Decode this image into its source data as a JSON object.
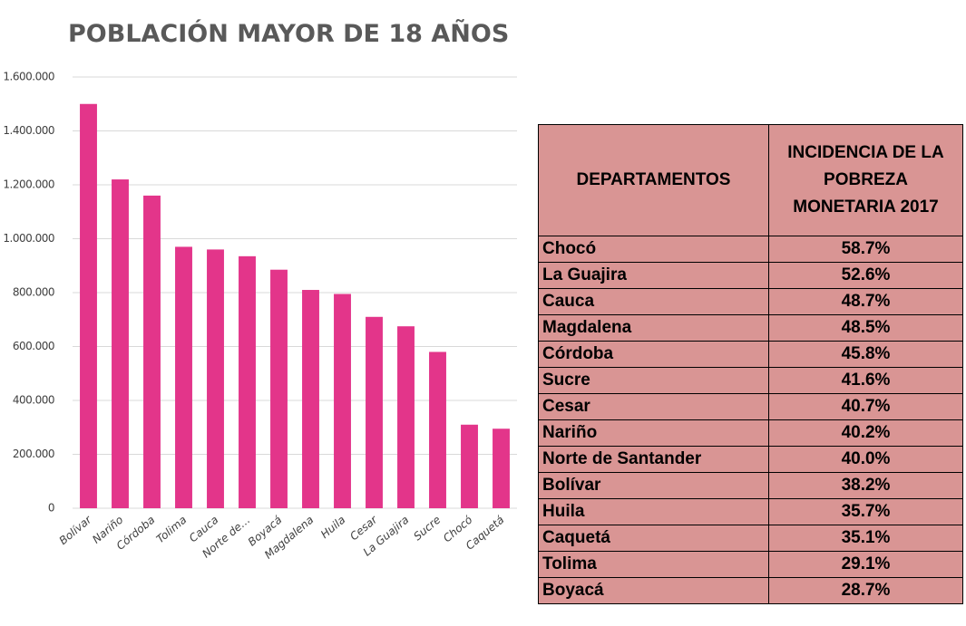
{
  "chart_data": {
    "type": "bar",
    "title": "POBLACIÓN MAYOR DE 18 AÑOS",
    "categories": [
      "Bolívar",
      "Nariño",
      "Córdoba",
      "Tolima",
      "Cauca",
      "Norte de…",
      "Boyacá",
      "Magdalena",
      "Huila",
      "Cesar",
      "La Guajira",
      "Sucre",
      "Chocó",
      "Caquetá"
    ],
    "values": [
      1500000,
      1220000,
      1160000,
      970000,
      960000,
      935000,
      885000,
      810000,
      795000,
      710000,
      675000,
      580000,
      310000,
      295000
    ],
    "color": "#e3358a",
    "ylim": [
      0,
      1600000
    ],
    "yticks": [
      0,
      {
        "value": 200000,
        "label": "200.000"
      },
      {
        "value": 400000,
        "label": "400.000"
      },
      {
        "value": 600000,
        "label": "600.000"
      },
      {
        "value": 800000,
        "label": "800.000"
      },
      {
        "value": 1000000,
        "label": "1.000.000"
      },
      {
        "value": 1200000,
        "label": "1.200.000"
      },
      {
        "value": 1400000,
        "label": "1.400.000"
      },
      {
        "value": 1600000,
        "label": "1.600.000"
      }
    ],
    "grid": true
  },
  "table": {
    "header": [
      "DEPARTAMENTOS",
      "INCIDENCIA DE LA POBREZA MONETARIA 2017"
    ],
    "rows": [
      [
        "Chocó",
        "58.7%"
      ],
      [
        "La Guajira",
        "52.6%"
      ],
      [
        "Cauca",
        "48.7%"
      ],
      [
        "Magdalena",
        "48.5%"
      ],
      [
        "Córdoba",
        "45.8%"
      ],
      [
        "Sucre",
        "41.6%"
      ],
      [
        "Cesar",
        "40.7%"
      ],
      [
        "Nariño",
        "40.2%"
      ],
      [
        "Norte de Santander",
        "40.0%"
      ],
      [
        "Bolívar",
        "38.2%"
      ],
      [
        "Huila",
        "35.7%"
      ],
      [
        "Caquetá",
        "35.1%"
      ],
      [
        "Tolima",
        "29.1%"
      ],
      [
        "Boyacá",
        "28.7%"
      ]
    ]
  }
}
